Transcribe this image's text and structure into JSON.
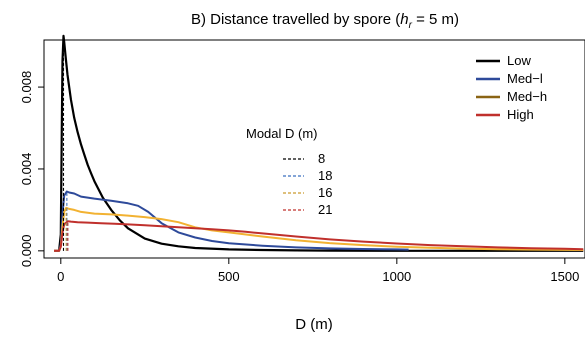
{
  "chart_data": {
    "type": "line",
    "title_prefix": "B) Distance travelled by spore (",
    "title_var": "h",
    "title_sub": "r",
    "title_suffix": " = 5 m)",
    "xlabel": "D (m)",
    "ylabel": "",
    "xlim": [
      -50,
      1560
    ],
    "ylim": [
      -0.00035,
      0.0103
    ],
    "xticks": [
      0,
      500,
      1000,
      1500
    ],
    "yticks": [
      0.0,
      0.004,
      0.008
    ],
    "ytick_labels": [
      "0.000",
      "0.004",
      "0.008"
    ],
    "grid": false,
    "legend": {
      "placement": "top-right",
      "entries": [
        {
          "label": "Low",
          "color": "#000000"
        },
        {
          "label": "Med−l",
          "color": "#2e4a9a"
        },
        {
          "label": "Med−h",
          "color": "#8a6414"
        },
        {
          "label": "High",
          "color": "#c0302c"
        }
      ]
    },
    "modal_legend": {
      "title": "Modal D (m)",
      "entries": [
        {
          "label": "8",
          "color": "#000000"
        },
        {
          "label": "18",
          "color": "#3a6fbf"
        },
        {
          "label": "16",
          "color": "#c99a2e"
        },
        {
          "label": "21",
          "color": "#c0302c"
        }
      ]
    },
    "modal_lines": [
      {
        "x": 8,
        "color": "#000000"
      },
      {
        "x": 18,
        "color": "#3a6fbf"
      },
      {
        "x": 16,
        "color": "#c99a2e"
      },
      {
        "x": 21,
        "color": "#c0302c"
      }
    ],
    "series": [
      {
        "name": "Low",
        "color": "#000000",
        "x": [
          -20,
          -5,
          0,
          3,
          5,
          8,
          10,
          15,
          20,
          30,
          40,
          50,
          60,
          70,
          80,
          90,
          100,
          125,
          150,
          175,
          200,
          250,
          300,
          350,
          400,
          500,
          600,
          700,
          800,
          1000,
          1200,
          1555
        ],
        "y": [
          0.0,
          0.0,
          0.0008,
          0.006,
          0.0093,
          0.0105,
          0.0102,
          0.0094,
          0.0086,
          0.0074,
          0.0065,
          0.0058,
          0.0052,
          0.0047,
          0.0042,
          0.0038,
          0.0034,
          0.0026,
          0.002,
          0.0015,
          0.0011,
          0.0006,
          0.00035,
          0.00022,
          0.00014,
          7e-05,
          4e-05,
          2e-05,
          1e-05,
          0.0,
          0.0,
          0.0
        ]
      },
      {
        "name": "Med−l",
        "color": "#2e4a9a",
        "x": [
          -20,
          -5,
          0,
          5,
          10,
          18,
          25,
          40,
          60,
          100,
          150,
          200,
          230,
          260,
          300,
          350,
          400,
          450,
          500,
          600,
          700,
          800,
          900,
          1000,
          1035
        ],
        "y": [
          0.0,
          0.0,
          0.0003,
          0.0018,
          0.0027,
          0.0029,
          0.00285,
          0.0028,
          0.00265,
          0.00255,
          0.00245,
          0.00232,
          0.0022,
          0.0019,
          0.00135,
          0.0009,
          0.00065,
          0.00048,
          0.00037,
          0.00025,
          0.00017,
          0.00012,
          9e-05,
          7e-05,
          6e-05
        ]
      },
      {
        "name": "Med−h",
        "color": "#f2b232",
        "x": [
          -20,
          -5,
          0,
          5,
          10,
          16,
          25,
          40,
          60,
          100,
          150,
          200,
          250,
          300,
          350,
          400,
          450,
          500,
          600,
          700,
          800,
          900,
          1000,
          1100,
          1200,
          1300,
          1400,
          1555
        ],
        "y": [
          0.0,
          0.0,
          0.0002,
          0.0012,
          0.0019,
          0.0021,
          0.00205,
          0.002,
          0.0019,
          0.00182,
          0.00178,
          0.00172,
          0.00165,
          0.00155,
          0.0014,
          0.00115,
          0.001,
          0.0009,
          0.0007,
          0.00052,
          0.00038,
          0.00028,
          0.0002,
          0.00015,
          0.00011,
          8e-05,
          6e-05,
          4e-05
        ]
      },
      {
        "name": "High",
        "color": "#c0302c",
        "x": [
          -20,
          -5,
          0,
          5,
          10,
          21,
          30,
          50,
          80,
          120,
          160,
          200,
          250,
          300,
          350,
          400,
          450,
          500,
          550,
          600,
          700,
          800,
          900,
          1000,
          1100,
          1200,
          1300,
          1400,
          1500,
          1555
        ],
        "y": [
          0.0,
          0.0,
          0.0002,
          0.0009,
          0.0013,
          0.00145,
          0.00143,
          0.0014,
          0.00138,
          0.00135,
          0.00132,
          0.00129,
          0.00125,
          0.0012,
          0.00115,
          0.0011,
          0.00105,
          0.001,
          0.00093,
          0.00085,
          0.0007,
          0.00056,
          0.00045,
          0.00036,
          0.00028,
          0.00022,
          0.00017,
          0.00013,
          0.0001,
          8e-05
        ]
      }
    ]
  }
}
